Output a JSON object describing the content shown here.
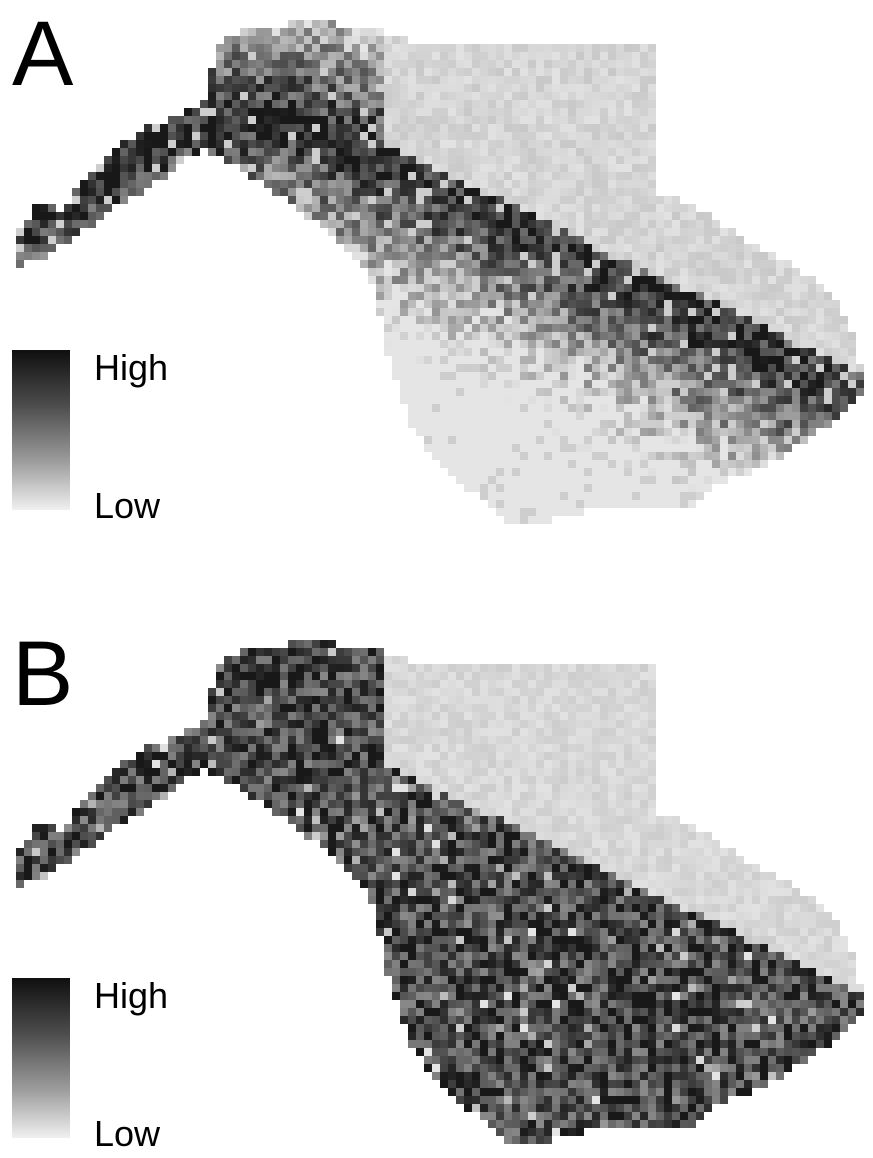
{
  "panels": [
    {
      "id": "A",
      "letter": "A",
      "legend": {
        "high_label": "High",
        "low_label": "Low",
        "colors": [
          "#0f0f0f",
          "#f0f0f0"
        ]
      },
      "pattern": "ridge"
    },
    {
      "id": "B",
      "letter": "B",
      "legend": {
        "high_label": "High",
        "low_label": "Low",
        "colors": [
          "#0f0f0f",
          "#f0f0f0"
        ]
      },
      "pattern": "noise"
    }
  ]
}
